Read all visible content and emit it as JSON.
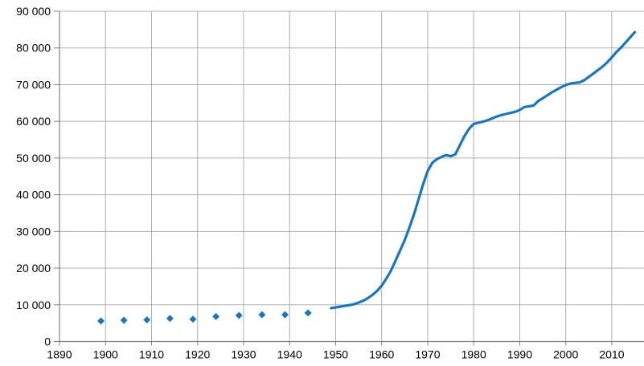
{
  "chart_data": {
    "type": "line",
    "title": "",
    "subtitle": "",
    "xlabel": "",
    "ylabel": "",
    "legend": "none",
    "grid": true,
    "background": "#ffffff",
    "xlim": [
      1890,
      2017
    ],
    "ylim": [
      0,
      90000
    ],
    "x_ticks": {
      "values": [
        1890,
        1900,
        1910,
        1920,
        1930,
        1940,
        1950,
        1960,
        1970,
        1980,
        1990,
        2000,
        2010
      ],
      "labels": [
        "1890",
        "1900",
        "1910",
        "1920",
        "1930",
        "1940",
        "1950",
        "1960",
        "1970",
        "1980",
        "1990",
        "2000",
        "2010"
      ]
    },
    "y_ticks": {
      "values": [
        0,
        10000,
        20000,
        30000,
        40000,
        50000,
        60000,
        70000,
        80000,
        90000
      ],
      "labels": [
        "0",
        "10 000",
        "20 000",
        "30 000",
        "40 000",
        "50 000",
        "60 000",
        "70 000",
        "80 000",
        "90 000"
      ]
    },
    "colors": {
      "series": "#1b75bc",
      "gridline": "#adadad",
      "axis": "#808080",
      "text": "#000000"
    },
    "series": [
      {
        "name": "census-points",
        "type": "scatter",
        "marker": "diamond",
        "marker_size": 4.5,
        "color": "#1b75bc",
        "points": [
          [
            1899,
            5600
          ],
          [
            1904,
            5800
          ],
          [
            1909,
            5900
          ],
          [
            1914,
            6300
          ],
          [
            1919,
            6100
          ],
          [
            1924,
            6800
          ],
          [
            1929,
            7100
          ],
          [
            1934,
            7300
          ],
          [
            1939,
            7300
          ],
          [
            1944,
            7800
          ]
        ]
      },
      {
        "name": "population-line",
        "type": "line",
        "stroke_width": 3.2,
        "color": "#1b75bc",
        "points": [
          [
            1949,
            9100
          ],
          [
            1950,
            9300
          ],
          [
            1951,
            9500
          ],
          [
            1952,
            9700
          ],
          [
            1953,
            9900
          ],
          [
            1954,
            10200
          ],
          [
            1955,
            10600
          ],
          [
            1956,
            11100
          ],
          [
            1957,
            11800
          ],
          [
            1958,
            12700
          ],
          [
            1959,
            13800
          ],
          [
            1960,
            15200
          ],
          [
            1961,
            17100
          ],
          [
            1962,
            19300
          ],
          [
            1963,
            22000
          ],
          [
            1964,
            24800
          ],
          [
            1965,
            27600
          ],
          [
            1966,
            31000
          ],
          [
            1967,
            34600
          ],
          [
            1968,
            38700
          ],
          [
            1969,
            42800
          ],
          [
            1970,
            46500
          ],
          [
            1971,
            48700
          ],
          [
            1972,
            49700
          ],
          [
            1973,
            50300
          ],
          [
            1974,
            50800
          ],
          [
            1975,
            50500
          ],
          [
            1976,
            51000
          ],
          [
            1977,
            53500
          ],
          [
            1978,
            56000
          ],
          [
            1979,
            58000
          ],
          [
            1980,
            59300
          ],
          [
            1981,
            59600
          ],
          [
            1982,
            59900
          ],
          [
            1983,
            60300
          ],
          [
            1984,
            60800
          ],
          [
            1985,
            61300
          ],
          [
            1986,
            61700
          ],
          [
            1987,
            62000
          ],
          [
            1988,
            62300
          ],
          [
            1989,
            62600
          ],
          [
            1990,
            63100
          ],
          [
            1991,
            63900
          ],
          [
            1992,
            64100
          ],
          [
            1993,
            64300
          ],
          [
            1994,
            65500
          ],
          [
            1995,
            66300
          ],
          [
            1996,
            67100
          ],
          [
            1997,
            67900
          ],
          [
            1998,
            68600
          ],
          [
            1999,
            69300
          ],
          [
            2000,
            69900
          ],
          [
            2001,
            70300
          ],
          [
            2002,
            70500
          ],
          [
            2003,
            70600
          ],
          [
            2004,
            71200
          ],
          [
            2005,
            72100
          ],
          [
            2006,
            73000
          ],
          [
            2007,
            74000
          ],
          [
            2008,
            74900
          ],
          [
            2009,
            76100
          ],
          [
            2010,
            77400
          ],
          [
            2011,
            78900
          ],
          [
            2012,
            80100
          ],
          [
            2013,
            81500
          ],
          [
            2014,
            82900
          ],
          [
            2015,
            84300
          ]
        ]
      }
    ]
  }
}
